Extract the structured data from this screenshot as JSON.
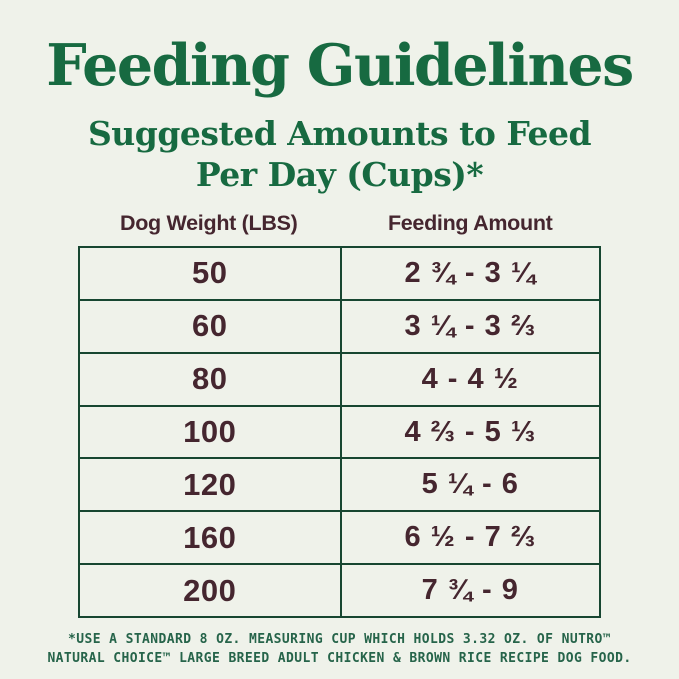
{
  "title": "Feeding Guidelines",
  "subtitle": {
    "line1": "Suggested Amounts to Feed",
    "line2": "Per Day (Cups)*"
  },
  "table": {
    "headers": [
      "Dog Weight (LBS)",
      "Feeding Amount"
    ],
    "rows": [
      {
        "weight": "50",
        "amount": "2 ¾ - 3 ¼"
      },
      {
        "weight": "60",
        "amount": "3 ¼ - 3 ⅔"
      },
      {
        "weight": "80",
        "amount": "4 - 4 ½"
      },
      {
        "weight": "100",
        "amount": "4 ⅔ - 5 ⅓"
      },
      {
        "weight": "120",
        "amount": "5 ¼ - 6"
      },
      {
        "weight": "160",
        "amount": "6 ½ - 7 ⅔"
      },
      {
        "weight": "200",
        "amount": "7 ¾ - 9"
      }
    ]
  },
  "footnote": {
    "line1": "*USE A STANDARD 8 OZ. MEASURING CUP WHICH HOLDS 3.32 OZ. OF NUTRO™",
    "line2": "NATURAL CHOICE™ LARGE BREED ADULT CHICKEN & BROWN RICE RECIPE DOG FOOD."
  },
  "colors": {
    "background": "#eff2ea",
    "heading_green": "#176a41",
    "table_border_green": "#174631",
    "text_brown": "#45262f",
    "footnote_green": "#26644a"
  },
  "chart_data": {
    "type": "table",
    "title": "Feeding Guidelines",
    "subtitle": "Suggested Amounts to Feed Per Day (Cups)*",
    "columns": [
      "Dog Weight (LBS)",
      "Feeding Amount"
    ],
    "rows": [
      [
        "50",
        "2 ¾ - 3 ¼"
      ],
      [
        "60",
        "3 ¼ - 3 ⅔"
      ],
      [
        "80",
        "4 - 4 ½"
      ],
      [
        "100",
        "4 ⅔ - 5 ⅓"
      ],
      [
        "120",
        "5 ¼ - 6"
      ],
      [
        "160",
        "6 ½ - 7 ⅔"
      ],
      [
        "200",
        "7 ¾ - 9"
      ]
    ],
    "footnote": "*USE A STANDARD 8 OZ. MEASURING CUP WHICH HOLDS 3.32 OZ. OF NUTRO™ NATURAL CHOICE™ LARGE BREED ADULT CHICKEN & BROWN RICE RECIPE DOG FOOD."
  }
}
